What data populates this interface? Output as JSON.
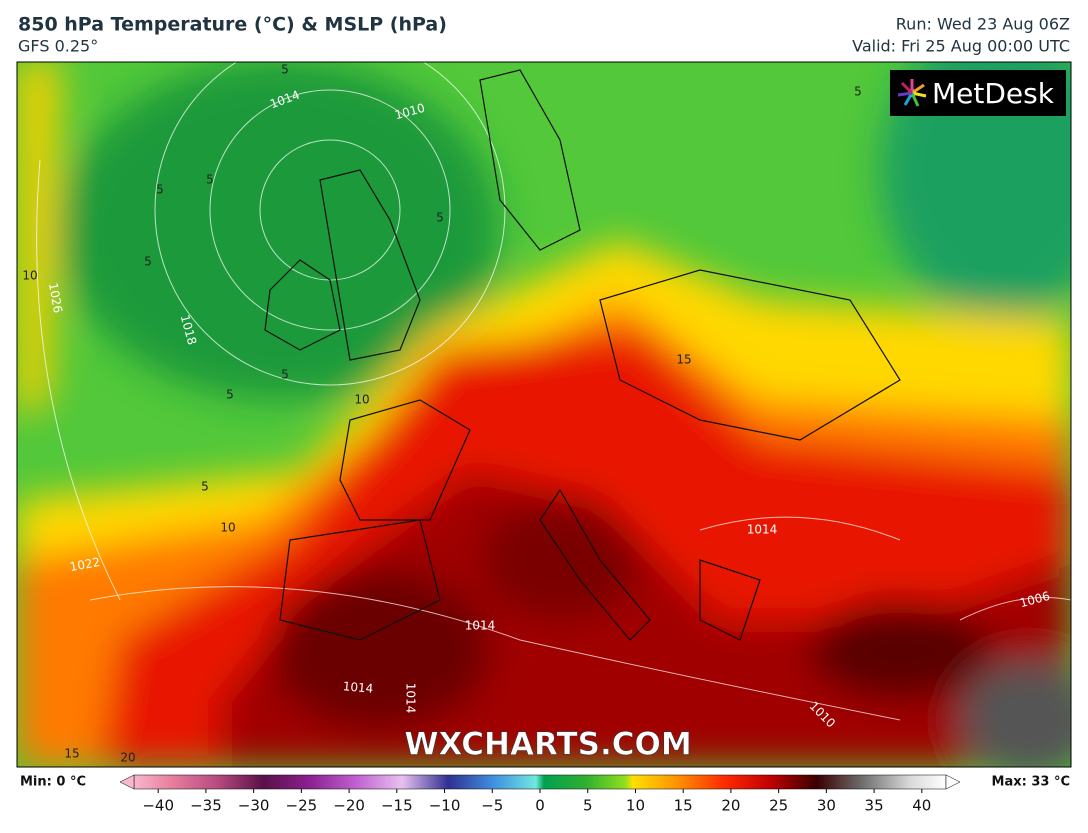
{
  "header": {
    "title": "850 hPa Temperature (°C) & MSLP (hPa)",
    "model": "GFS 0.25°",
    "run": "Run: Wed 23 Aug 06Z",
    "valid": "Valid: Fri 25 Aug 00:00 UTC"
  },
  "logo": "MetDesk",
  "watermark": "WXCHARTS.COM",
  "map_labels": [
    "1014",
    "1010",
    "5",
    "5",
    "5",
    "5",
    "10",
    "1026",
    "1018",
    "5",
    "5",
    "10",
    "5",
    "10",
    "1022",
    "15",
    "1014",
    "1014",
    "1014",
    "1014",
    "1010",
    "1006",
    "15",
    "20",
    "5",
    "5"
  ],
  "colorbar": {
    "min_label": "Min: 0 °C",
    "max_label": "Max: 33 °C",
    "lim": [
      -44,
      44
    ],
    "ticks": [
      {
        "value": -40,
        "label": "−40"
      },
      {
        "value": -35,
        "label": "−35"
      },
      {
        "value": -30,
        "label": "−30"
      },
      {
        "value": -25,
        "label": "−25"
      },
      {
        "value": -20,
        "label": "−20"
      },
      {
        "value": -15,
        "label": "−15"
      },
      {
        "value": -10,
        "label": "−10"
      },
      {
        "value": -5,
        "label": "−5"
      },
      0,
      5,
      10,
      15,
      20,
      25,
      30,
      35,
      40
    ]
  }
}
